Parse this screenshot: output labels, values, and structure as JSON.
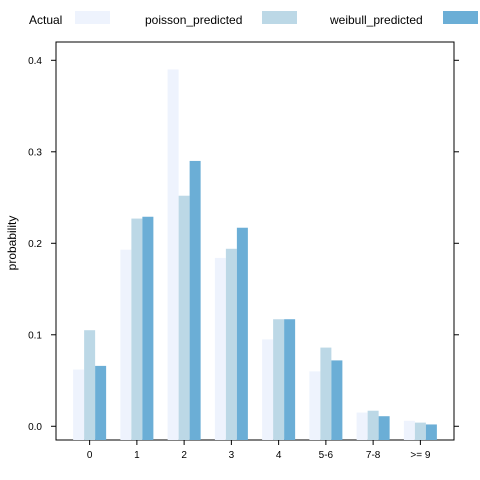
{
  "chart_data": {
    "type": "bar",
    "ylabel": "probability",
    "xlabel": "",
    "ylim": [
      -0.015,
      0.42
    ],
    "yticks": [
      0.0,
      0.1,
      0.2,
      0.3,
      0.4
    ],
    "ytick_labels": [
      "0.0",
      "0.1",
      "0.2",
      "0.3",
      "0.4"
    ],
    "categories": [
      "0",
      "1",
      "2",
      "3",
      "4",
      "5-6",
      "7-8",
      ">= 9"
    ],
    "series": [
      {
        "name": "Actual",
        "color": "#EEF3FD",
        "values": [
          0.062,
          0.193,
          0.39,
          0.184,
          0.095,
          0.06,
          0.015,
          0.006
        ]
      },
      {
        "name": "poisson_predicted",
        "color": "#BCD8E6",
        "values": [
          0.105,
          0.227,
          0.252,
          0.194,
          0.117,
          0.086,
          0.017,
          0.004
        ]
      },
      {
        "name": "weibull_predicted",
        "color": "#6BAED6",
        "values": [
          0.066,
          0.229,
          0.29,
          0.217,
          0.117,
          0.072,
          0.011,
          0.002
        ]
      }
    ],
    "legend_position": "top",
    "grid": false
  }
}
